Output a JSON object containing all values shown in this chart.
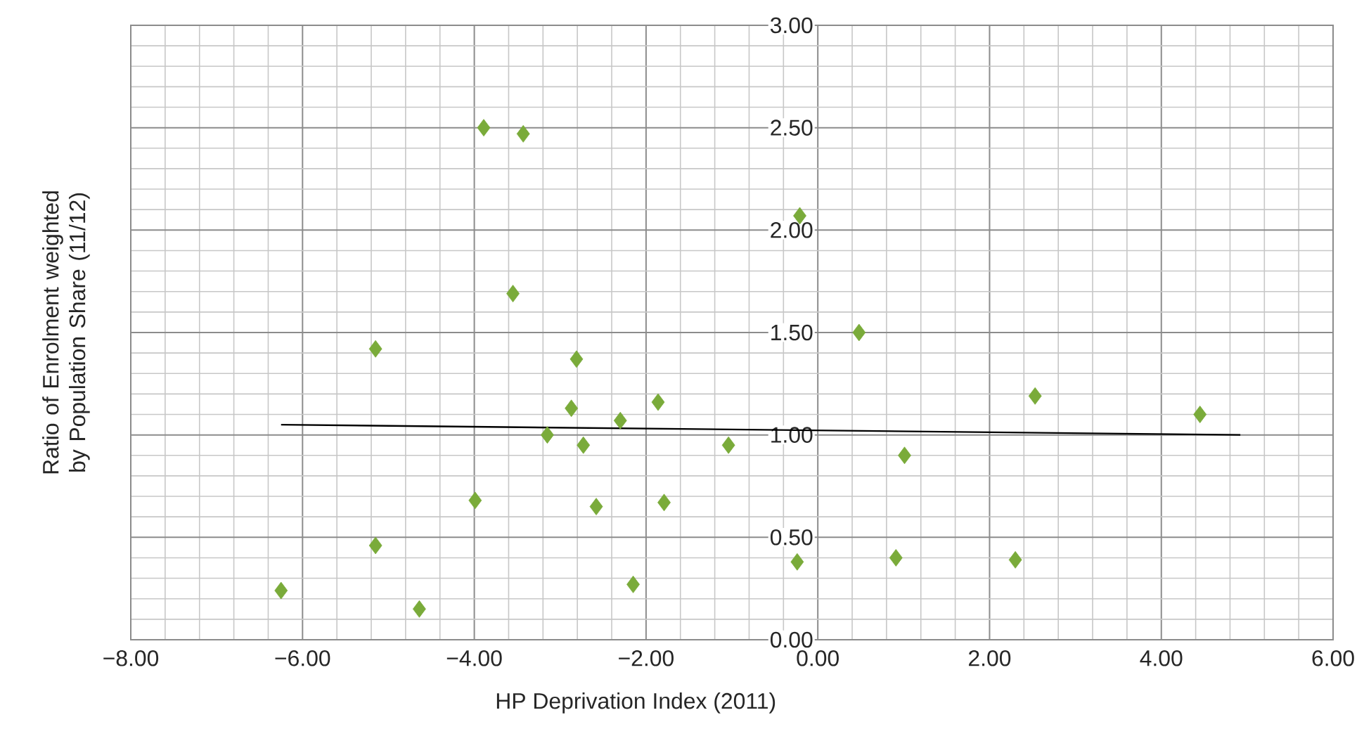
{
  "chart_data": {
    "type": "scatter",
    "xlabel": "HP Deprivation Index (2011)",
    "ylabel": "Ratio of Enrolment weighted by Population Share (11/12)",
    "xlim": [
      -8,
      6
    ],
    "ylim": [
      0,
      3
    ],
    "xticks": [
      {
        "value": -8,
        "label": "−8.00"
      },
      {
        "value": -6,
        "label": "−6.00"
      },
      {
        "value": -4,
        "label": "−4.00"
      },
      {
        "value": -2,
        "label": "−2.00"
      },
      {
        "value": 0,
        "label": "0.00"
      },
      {
        "value": 2,
        "label": "2.00"
      },
      {
        "value": 4,
        "label": "4.00"
      },
      {
        "value": 6,
        "label": "6.00"
      }
    ],
    "yticks": [
      {
        "value": 0,
        "label": "0.00"
      },
      {
        "value": 0.5,
        "label": "0.50"
      },
      {
        "value": 1,
        "label": "1.00"
      },
      {
        "value": 1.5,
        "label": "1.50"
      },
      {
        "value": 2,
        "label": "2.00"
      },
      {
        "value": 2.5,
        "label": "2.50"
      },
      {
        "value": 3,
        "label": "3.00"
      }
    ],
    "grid": true,
    "series": [
      {
        "color": "#7aab3a",
        "marker": "diamond",
        "x": [
          -6.25,
          -5.15,
          -5.15,
          -4.64,
          -3.99,
          -3.89,
          -3.43,
          -3.55,
          -3.15,
          -2.87,
          -2.81,
          -2.73,
          -2.58,
          -2.3,
          -2.15,
          -1.86,
          -1.79,
          -1.04,
          -0.24,
          -0.21,
          0.48,
          0.91,
          1.01,
          2.3,
          2.53,
          4.45
        ],
        "values": [
          0.24,
          0.46,
          1.42,
          0.15,
          0.68,
          2.5,
          2.47,
          1.69,
          1.0,
          1.13,
          1.37,
          0.95,
          0.65,
          1.07,
          0.27,
          1.16,
          0.67,
          0.95,
          0.38,
          2.07,
          1.5,
          0.4,
          0.9,
          0.39,
          1.19,
          1.1
        ]
      },
      {
        "type": "line",
        "color": "#000000",
        "x": [
          -6.25,
          4.92
        ],
        "values": [
          1.05,
          1.0
        ]
      }
    ]
  }
}
